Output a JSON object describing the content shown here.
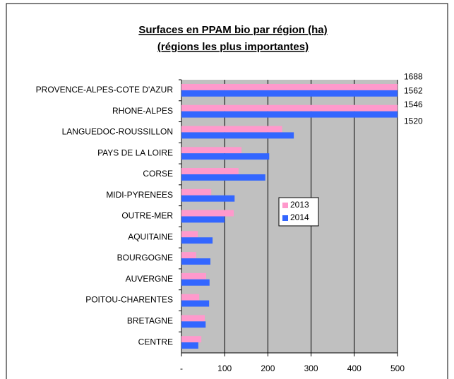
{
  "chart_data": {
    "type": "bar",
    "orientation": "horizontal",
    "title": [
      "Surfaces en PPAM bio par région (ha)",
      "(régions les plus importantes)"
    ],
    "categories": [
      "PROVENCE-ALPES-COTE D'AZUR",
      "RHONE-ALPES",
      "LANGUEDOC-ROUSSILLON",
      "PAYS DE LA LOIRE",
      "CORSE",
      "MIDI-PYRENEES",
      "OUTRE-MER",
      "AQUITAINE",
      "BOURGOGNE",
      "AUVERGNE",
      "POITOU-CHARENTES",
      "BRETAGNE",
      "CENTRE"
    ],
    "series": [
      {
        "name": "2013",
        "color": "#ff99cc",
        "values": [
          1688,
          1546,
          233,
          139,
          132,
          69,
          121,
          38,
          34,
          57,
          41,
          54,
          46
        ],
        "value_labels": [
          "1688",
          "1546",
          null,
          null,
          null,
          null,
          null,
          null,
          null,
          null,
          null,
          null,
          null
        ]
      },
      {
        "name": "2014",
        "color": "#3366ff",
        "values": [
          1562,
          1520,
          260,
          203,
          194,
          123,
          100,
          72,
          67,
          65,
          64,
          56,
          39
        ],
        "value_labels": [
          "1562",
          "1520",
          null,
          null,
          null,
          null,
          null,
          null,
          null,
          null,
          null,
          null,
          null
        ]
      }
    ],
    "xlim": [
      0,
      500
    ],
    "xticks": [
      {
        "value": 0,
        "label": "-"
      },
      100,
      200,
      300,
      400,
      500
    ],
    "grid": true,
    "legend": "center"
  }
}
